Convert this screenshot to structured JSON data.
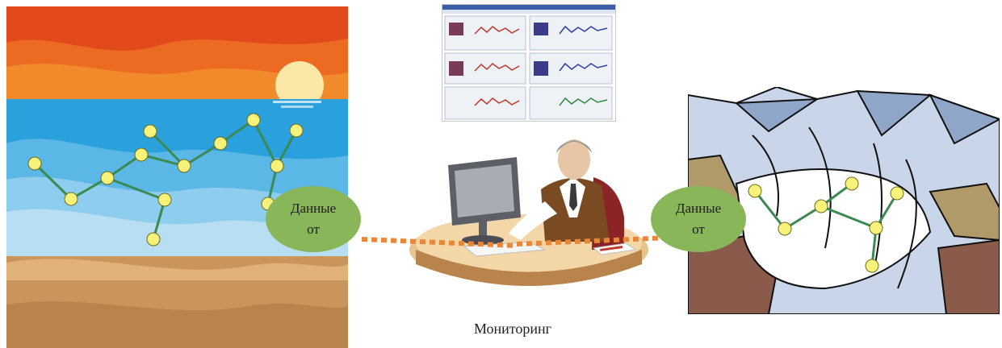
{
  "left_bubble": {
    "line1": "Данные",
    "line2": "от"
  },
  "right_bubble": {
    "line1": "Данные",
    "line2": "от"
  },
  "caption": "Мониторинг",
  "colors": {
    "sky_top": "#e24a1c",
    "sky_mid": "#f08a2a",
    "sea": "#2aa0dc",
    "sand": "#c9955a",
    "node_fill": "#f7f27a",
    "edge": "#3a8a52",
    "bubble": "#8ab65a",
    "dotted_link": "#e6873a"
  },
  "icons": {
    "sea_scene": "sea-sunset-illustration",
    "mountain_scene": "glacier-mountain-illustration",
    "workstation": "operator-at-computer-illustration",
    "screenshot": "monitoring-software-screenshot"
  }
}
